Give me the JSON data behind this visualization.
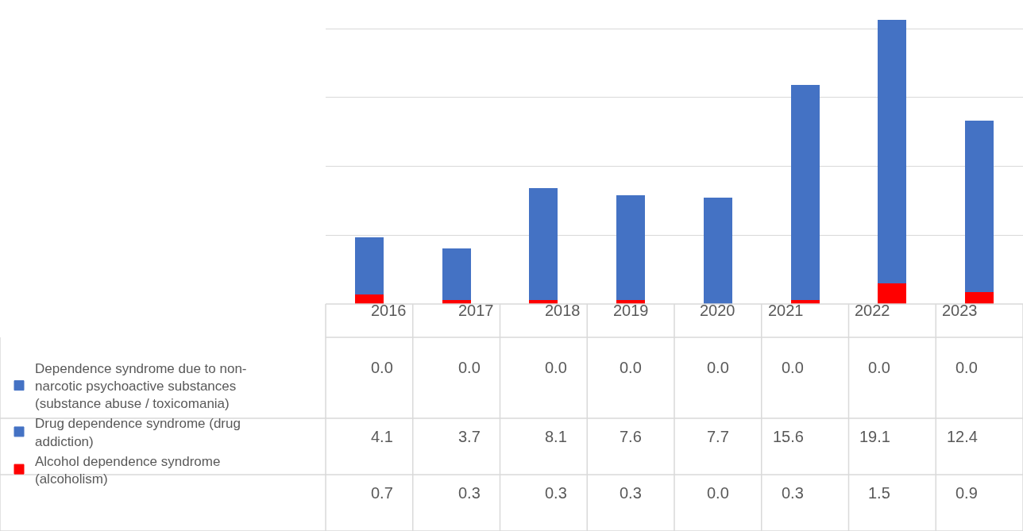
{
  "chart_data": {
    "type": "bar",
    "stacked": true,
    "categories": [
      "2016",
      "2017",
      "2018",
      "2019",
      "2020",
      "2021",
      "2022",
      "2023"
    ],
    "series": [
      {
        "name": "Alcohol dependence syndrome (alcoholism)",
        "color": "#ff0000",
        "values": [
          0.7,
          0.3,
          0.3,
          0.3,
          0.0,
          0.3,
          1.5,
          0.9
        ],
        "value_labels": [
          "0.7",
          "0.3",
          "0.3",
          "0.3",
          "0.0",
          "0.3",
          "1.5",
          "0.9"
        ]
      },
      {
        "name": "Drug dependence syndrome (drug addiction)",
        "color": "#4472c4",
        "values": [
          4.1,
          3.7,
          8.1,
          7.6,
          7.7,
          15.6,
          19.1,
          12.4
        ],
        "value_labels": [
          "4.1",
          "3.7",
          "8.1",
          "7.6",
          "7.7",
          "15.6",
          "19.1",
          "12.4"
        ]
      },
      {
        "name": "Dependence syndrome due to non-narcotic psychoactive substances (substance abuse / toxicomania)",
        "color": "#4472c4",
        "values": [
          0.0,
          0.0,
          0.0,
          0.0,
          0.0,
          0.0,
          0.0,
          0.0
        ],
        "value_labels": [
          "0.0",
          "0.0",
          "0.0",
          "0.0",
          "0.0",
          "0.0",
          "0.0",
          "0.0"
        ]
      }
    ],
    "grid": "y",
    "legend": "bottom left",
    "tick_labels": false
  }
}
